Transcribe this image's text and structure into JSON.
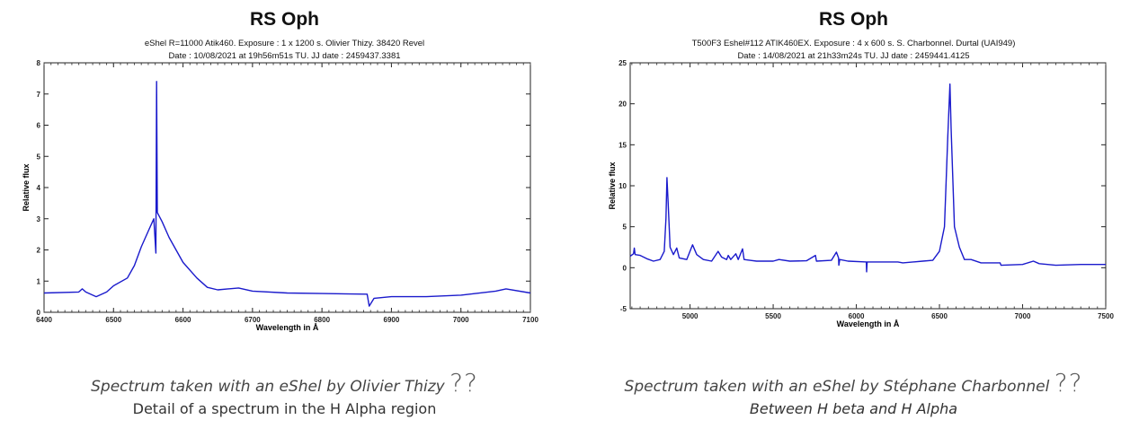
{
  "chart_data": [
    {
      "type": "line",
      "title": "RS Oph",
      "subtitle_lines": [
        "eShel R=11000 Atik460. Exposure : 1 x 1200 s. Olivier Thizy. 38420 Revel",
        "Date : 10/08/2021 at 19h56m51s TU. JJ date : 2459437.3381"
      ],
      "xlabel": "Wavelength in Å",
      "ylabel": "Relative flux",
      "xlim": [
        6400,
        7100
      ],
      "ylim": [
        0,
        8
      ],
      "xticks": [
        6400,
        6500,
        6600,
        6700,
        6800,
        6900,
        7000,
        7100
      ],
      "yticks": [
        0,
        1,
        2,
        3,
        4,
        5,
        6,
        7,
        8
      ],
      "grid": false,
      "line_color": "#1a1acc",
      "x": [
        6400,
        6450,
        6455,
        6460,
        6475,
        6490,
        6500,
        6520,
        6530,
        6540,
        6550,
        6558,
        6561,
        6562,
        6563,
        6570,
        6580,
        6600,
        6620,
        6635,
        6650,
        6680,
        6700,
        6750,
        6800,
        6865,
        6868,
        6875,
        6900,
        6950,
        7000,
        7050,
        7065,
        7100
      ],
      "y": [
        0.62,
        0.65,
        0.75,
        0.65,
        0.5,
        0.65,
        0.85,
        1.1,
        1.5,
        2.1,
        2.6,
        3.0,
        1.9,
        7.4,
        3.2,
        2.9,
        2.4,
        1.6,
        1.1,
        0.8,
        0.72,
        0.78,
        0.68,
        0.62,
        0.6,
        0.58,
        0.2,
        0.45,
        0.5,
        0.5,
        0.55,
        0.68,
        0.75,
        0.62
      ],
      "caption": "Spectrum taken with an eShel by Olivier Thizy",
      "caption_mark": "??",
      "caption_detail": "Detail of a spectrum in the H Alpha region"
    },
    {
      "type": "line",
      "title": "RS Oph",
      "subtitle_lines": [
        "T500F3 Eshel#112 ATIK460EX. Exposure : 4 x 600 s. S. Charbonnel. Durtal (UAI949)",
        "Date : 14/08/2021 at 21h33m24s TU. JJ date : 2459441.4125"
      ],
      "xlabel": "Wavelength in Å",
      "ylabel": "Relative flux",
      "xlim": [
        4640,
        7500
      ],
      "ylim": [
        -5,
        25
      ],
      "xticks": [
        5000,
        5500,
        6000,
        6500,
        7000,
        7500
      ],
      "yticks": [
        -5,
        0,
        5,
        10,
        15,
        20,
        25
      ],
      "grid": false,
      "line_color": "#1a1acc",
      "x": [
        4640,
        4660,
        4665,
        4670,
        4700,
        4740,
        4780,
        4820,
        4845,
        4855,
        4861,
        4868,
        4880,
        4900,
        4920,
        4935,
        4980,
        5015,
        5040,
        5080,
        5130,
        5169,
        5190,
        5220,
        5230,
        5245,
        5275,
        5290,
        5316,
        5325,
        5360,
        5400,
        5500,
        5535,
        5600,
        5700,
        5754,
        5760,
        5850,
        5880,
        5893,
        5895,
        5900,
        5950,
        6060,
        6062,
        6065,
        6200,
        6250,
        6280,
        6400,
        6460,
        6500,
        6530,
        6550,
        6563,
        6570,
        6590,
        6620,
        6650,
        6690,
        6750,
        6865,
        6870,
        7000,
        7065,
        7100,
        7200,
        7350,
        7500
      ],
      "y": [
        1.4,
        1.7,
        2.4,
        1.6,
        1.5,
        1.1,
        0.8,
        1.0,
        2.0,
        6.0,
        11.0,
        8.0,
        2.5,
        1.6,
        2.4,
        1.2,
        1.0,
        2.8,
        1.6,
        1.0,
        0.8,
        2.0,
        1.3,
        1.0,
        1.5,
        1.0,
        1.7,
        1.0,
        2.3,
        1.0,
        0.9,
        0.8,
        0.8,
        1.0,
        0.8,
        0.85,
        1.5,
        0.8,
        0.9,
        1.9,
        1.2,
        0.3,
        1.0,
        0.8,
        0.7,
        -0.5,
        0.7,
        0.7,
        0.7,
        0.6,
        0.8,
        0.9,
        2.0,
        5.0,
        16.0,
        22.4,
        17.0,
        5.0,
        2.5,
        1.0,
        1.0,
        0.6,
        0.6,
        0.3,
        0.4,
        0.8,
        0.5,
        0.3,
        0.4,
        0.4
      ],
      "caption": "Spectrum taken with an eShel by Stéphane Charbonnel",
      "caption_mark": "??",
      "caption_detail": "Between H beta and H Alpha"
    }
  ]
}
